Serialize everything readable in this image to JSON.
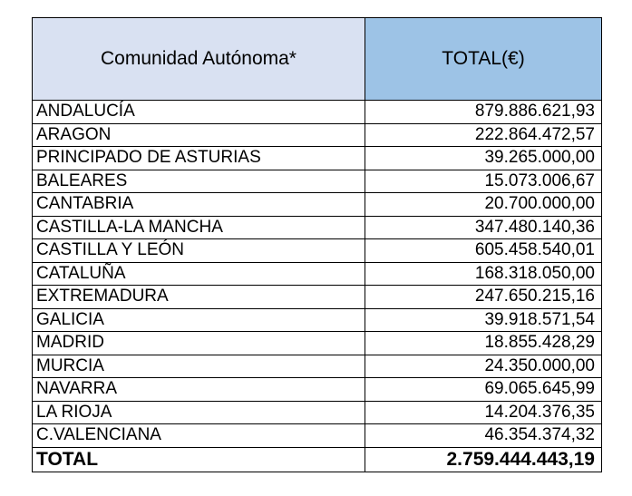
{
  "table": {
    "headers": {
      "region": "Comunidad Autónoma*",
      "total": "TOTAL(€)"
    },
    "rows": [
      {
        "name": "ANDALUCÍA",
        "value": "879.886.621,93"
      },
      {
        "name": "ARAGON",
        "value": "222.864.472,57"
      },
      {
        "name": "PRINCIPADO DE ASTURIAS",
        "value": "39.265.000,00"
      },
      {
        "name": "BALEARES",
        "value": "15.073.006,67"
      },
      {
        "name": "CANTABRIA",
        "value": "20.700.000,00"
      },
      {
        "name": "CASTILLA-LA MANCHA",
        "value": "347.480.140,36"
      },
      {
        "name": "CASTILLA Y LEÓN",
        "value": "605.458.540,01"
      },
      {
        "name": "CATALUÑA",
        "value": "168.318.050,00"
      },
      {
        "name": "EXTREMADURA",
        "value": "247.650.215,16"
      },
      {
        "name": "GALICIA",
        "value": "39.918.571,54"
      },
      {
        "name": "MADRID",
        "value": "18.855.428,29"
      },
      {
        "name": "MURCIA",
        "value": "24.350.000,00"
      },
      {
        "name": "NAVARRA",
        "value": "69.065.645,99"
      },
      {
        "name": "LA RIOJA",
        "value": "14.204.376,35"
      },
      {
        "name": "C.VALENCIANA",
        "value": "46.354.374,32"
      }
    ],
    "total": {
      "label": "TOTAL",
      "value": "2.759.444.443,19"
    }
  },
  "colors": {
    "header_region_bg": "#d9e1f2",
    "header_total_bg": "#9dc3e6",
    "border": "#000000"
  }
}
